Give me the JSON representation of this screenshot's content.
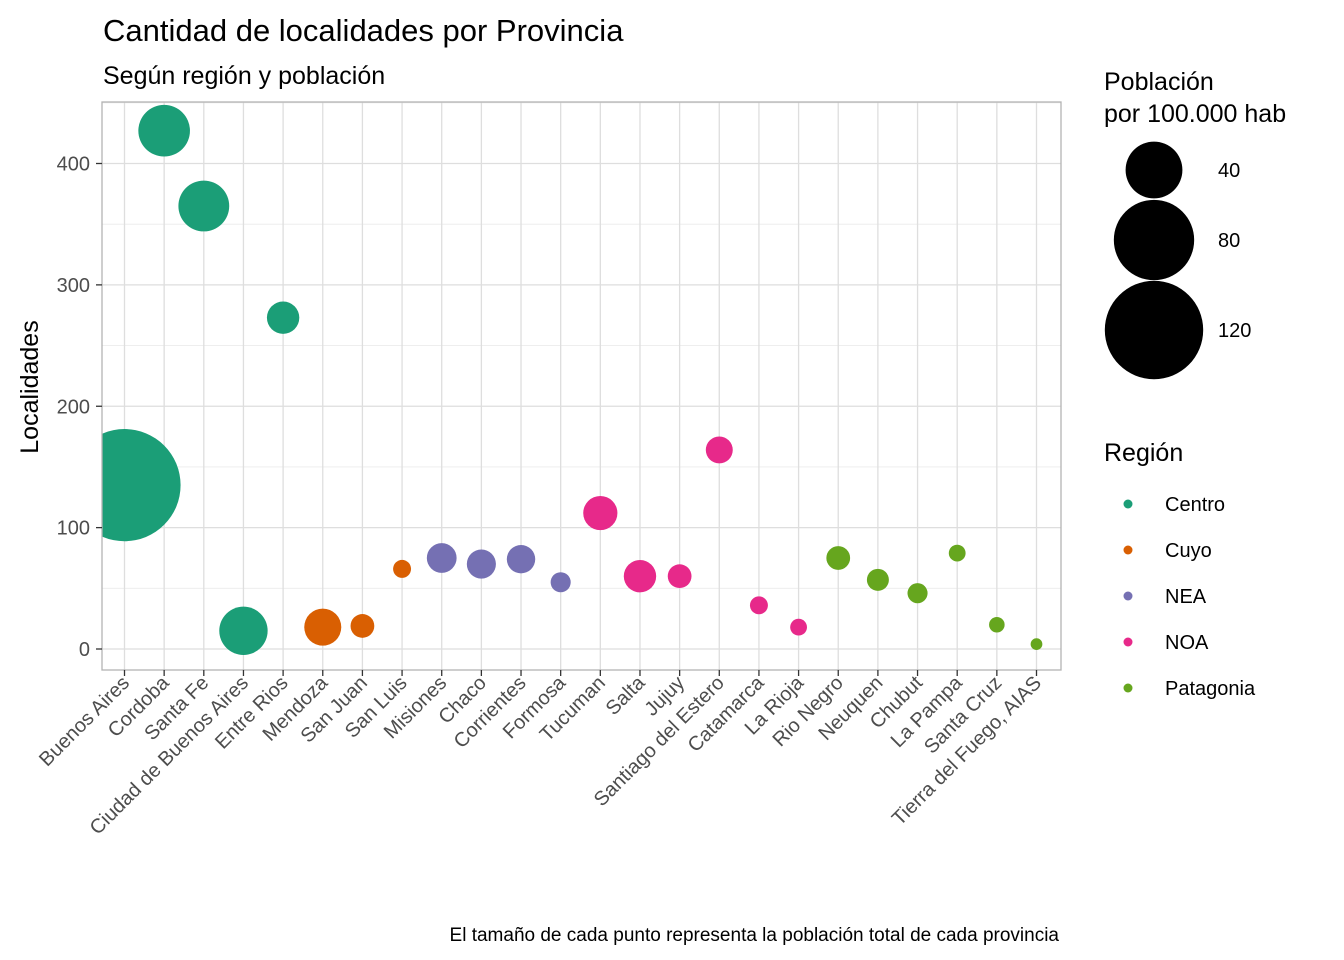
{
  "chart_data": {
    "type": "scatter",
    "title": "Cantidad de localidades por Provincia",
    "subtitle": "Según región y población",
    "xlabel": "",
    "ylabel": "Localidades",
    "caption": "El tamaño de cada punto representa la población total de cada provincia",
    "ylim": [
      -17,
      450
    ],
    "yticks": [
      0,
      100,
      200,
      300,
      400
    ],
    "grid": true,
    "legend_position": "right",
    "size_legend": {
      "title_line1": "Población",
      "title_line2": "por 100.000 hab",
      "breaks": [
        {
          "label": "40",
          "value": 40
        },
        {
          "label": "80",
          "value": 80
        },
        {
          "label": "120",
          "value": 120
        }
      ]
    },
    "color_legend": {
      "title": "Región",
      "entries": [
        {
          "label": "Centro",
          "color": "#1b9e77"
        },
        {
          "label": "Cuyo",
          "color": "#d95f02"
        },
        {
          "label": "NEA",
          "color": "#7570b3"
        },
        {
          "label": "NOA",
          "color": "#e7298a"
        },
        {
          "label": "Patagonia",
          "color": "#66a61e"
        }
      ]
    },
    "categories": [
      "Buenos Aires",
      "Cordoba",
      "Santa Fe",
      "Ciudad de Buenos Aires",
      "Entre Rios",
      "Mendoza",
      "San Juan",
      "San Luis",
      "Misiones",
      "Chaco",
      "Corrientes",
      "Formosa",
      "Tucuman",
      "Salta",
      "Jujuy",
      "Santiago del Estero",
      "Catamarca",
      "La Rioja",
      "Rio Negro",
      "Neuquen",
      "Chubut",
      "La Pampa",
      "Santa Cruz",
      "Tierra del Fuego, AIAS"
    ],
    "points": [
      {
        "x": "Buenos Aires",
        "y": 135,
        "size": 156,
        "region": "Centro"
      },
      {
        "x": "Cordoba",
        "y": 427,
        "size": 33,
        "region": "Centro"
      },
      {
        "x": "Santa Fe",
        "y": 365,
        "size": 32,
        "region": "Centro"
      },
      {
        "x": "Ciudad de Buenos Aires",
        "y": 15,
        "size": 29,
        "region": "Centro"
      },
      {
        "x": "Entre Rios",
        "y": 273,
        "size": 13,
        "region": "Centro"
      },
      {
        "x": "Mendoza",
        "y": 18,
        "size": 17,
        "region": "Cuyo"
      },
      {
        "x": "San Juan",
        "y": 19,
        "size": 7,
        "region": "Cuyo"
      },
      {
        "x": "San Luis",
        "y": 66,
        "size": 4,
        "region": "Cuyo"
      },
      {
        "x": "Misiones",
        "y": 75,
        "size": 11,
        "region": "NEA"
      },
      {
        "x": "Chaco",
        "y": 70,
        "size": 10.5,
        "region": "NEA"
      },
      {
        "x": "Corrientes",
        "y": 74,
        "size": 10,
        "region": "NEA"
      },
      {
        "x": "Formosa",
        "y": 55,
        "size": 5,
        "region": "NEA"
      },
      {
        "x": "Tucuman",
        "y": 112,
        "size": 14.5,
        "region": "NOA"
      },
      {
        "x": "Salta",
        "y": 60,
        "size": 13,
        "region": "NOA"
      },
      {
        "x": "Jujuy",
        "y": 60,
        "size": 7,
        "region": "NOA"
      },
      {
        "x": "Santiago del Estero",
        "y": 164,
        "size": 9,
        "region": "NOA"
      },
      {
        "x": "Catamarca",
        "y": 36,
        "size": 4,
        "region": "NOA"
      },
      {
        "x": "La Rioja",
        "y": 18,
        "size": 3.5,
        "region": "NOA"
      },
      {
        "x": "Rio Negro",
        "y": 75,
        "size": 7,
        "region": "Patagonia"
      },
      {
        "x": "Neuquen",
        "y": 57,
        "size": 6,
        "region": "Patagonia"
      },
      {
        "x": "Chubut",
        "y": 46,
        "size": 5,
        "region": "Patagonia"
      },
      {
        "x": "La Pampa",
        "y": 79,
        "size": 3.5,
        "region": "Patagonia"
      },
      {
        "x": "Santa Cruz",
        "y": 20,
        "size": 3,
        "region": "Patagonia"
      },
      {
        "x": "Tierra del Fuego, AIAS",
        "y": 4,
        "size": 1.7,
        "region": "Patagonia"
      }
    ]
  }
}
